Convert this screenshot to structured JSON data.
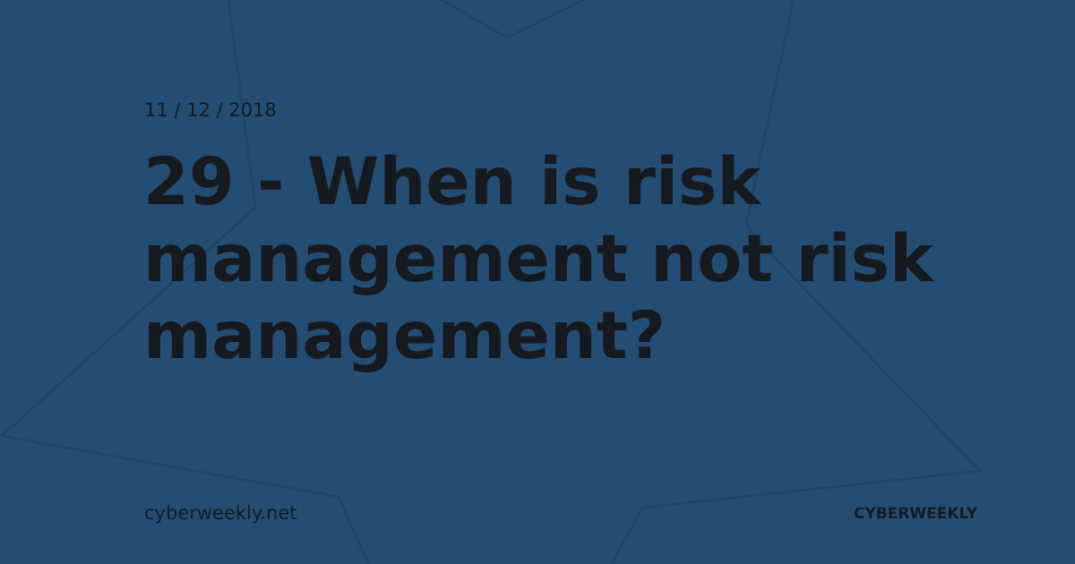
{
  "background_color": "#244d74",
  "text_color": "#161a1f",
  "decoration": "star-outline",
  "post": {
    "date": "11 / 12 / 2018",
    "title": "29 - When is risk management not risk management?"
  },
  "footer": {
    "site_url": "cyberweekly.net",
    "brand": "CYBERWEEKLY"
  }
}
